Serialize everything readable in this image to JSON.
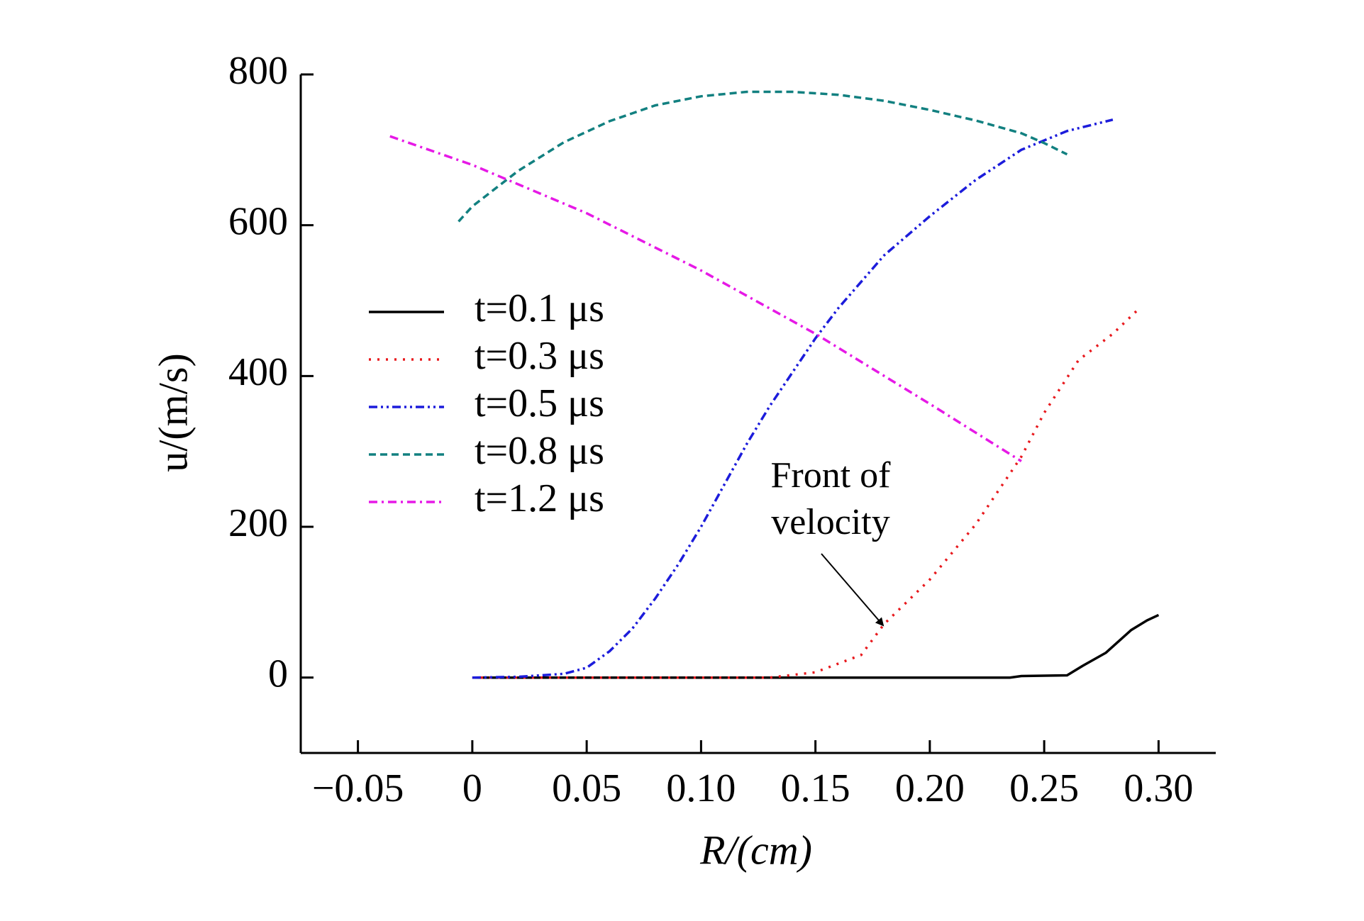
{
  "chart_data": {
    "type": "line",
    "xlabel": "R/(cm)",
    "ylabel": "u/(m/s)",
    "xlim": [
      -0.075,
      0.325
    ],
    "ylim": [
      -100,
      800
    ],
    "xticks": [
      {
        "value": -0.05,
        "label": "−0.05"
      },
      0,
      0.05,
      {
        "value": 0.1,
        "label": "0.10"
      },
      0.15,
      {
        "value": 0.2,
        "label": "0.20"
      },
      0.25,
      {
        "value": 0.3,
        "label": "0.30"
      }
    ],
    "yticks": [
      0,
      200,
      400,
      600,
      800
    ],
    "grid": false,
    "legend": "center-left",
    "annotation": [
      "Front of",
      "velocity"
    ],
    "series": [
      {
        "name": "t=0.1 μs",
        "color": "#000000",
        "style": "solid",
        "x": [
          0,
          0.05,
          0.1,
          0.15,
          0.2,
          0.235,
          0.24,
          0.26,
          0.267,
          0.277,
          0.288,
          0.295,
          0.3
        ],
        "values": [
          0,
          0,
          0,
          0,
          0,
          0,
          2,
          3,
          16,
          33,
          63,
          76,
          83
        ]
      },
      {
        "name": "t=0.3 μs",
        "color": "#e8191d",
        "style": "dotted",
        "x": [
          0,
          0.05,
          0.1,
          0.13,
          0.15,
          0.17,
          0.18,
          0.2,
          0.22,
          0.24,
          0.25,
          0.265,
          0.28,
          0.292
        ],
        "values": [
          0,
          0,
          0,
          0,
          7,
          30,
          71,
          130,
          203,
          293,
          351,
          421,
          456,
          491
        ]
      },
      {
        "name": "t=0.5 μs",
        "color": "#1c1cdb",
        "style": "dashdotdot",
        "x": [
          0,
          0.02,
          0.04,
          0.05,
          0.06,
          0.07,
          0.08,
          0.09,
          0.1,
          0.11,
          0.12,
          0.13,
          0.14,
          0.15,
          0.16,
          0.18,
          0.2,
          0.22,
          0.24,
          0.26,
          0.28
        ],
        "values": [
          0,
          1,
          5,
          13,
          35,
          65,
          105,
          150,
          200,
          255,
          310,
          360,
          405,
          450,
          490,
          560,
          612,
          660,
          700,
          725,
          740
        ]
      },
      {
        "name": "t=0.8 μs",
        "color": "#128080",
        "style": "dashed",
        "x": [
          -0.006,
          0,
          0.02,
          0.04,
          0.06,
          0.08,
          0.1,
          0.12,
          0.14,
          0.16,
          0.18,
          0.2,
          0.22,
          0.24,
          0.25,
          0.26
        ],
        "values": [
          605,
          625,
          672,
          710,
          738,
          759,
          771,
          777,
          777,
          773,
          765,
          753,
          739,
          722,
          709,
          694
        ]
      },
      {
        "name": "t=1.2 μs",
        "color": "#e619e6",
        "style": "dashdot",
        "x": [
          -0.036,
          0,
          0.05,
          0.1,
          0.15,
          0.2,
          0.24
        ],
        "values": [
          718,
          680,
          616,
          540,
          456,
          363,
          287
        ]
      }
    ]
  }
}
